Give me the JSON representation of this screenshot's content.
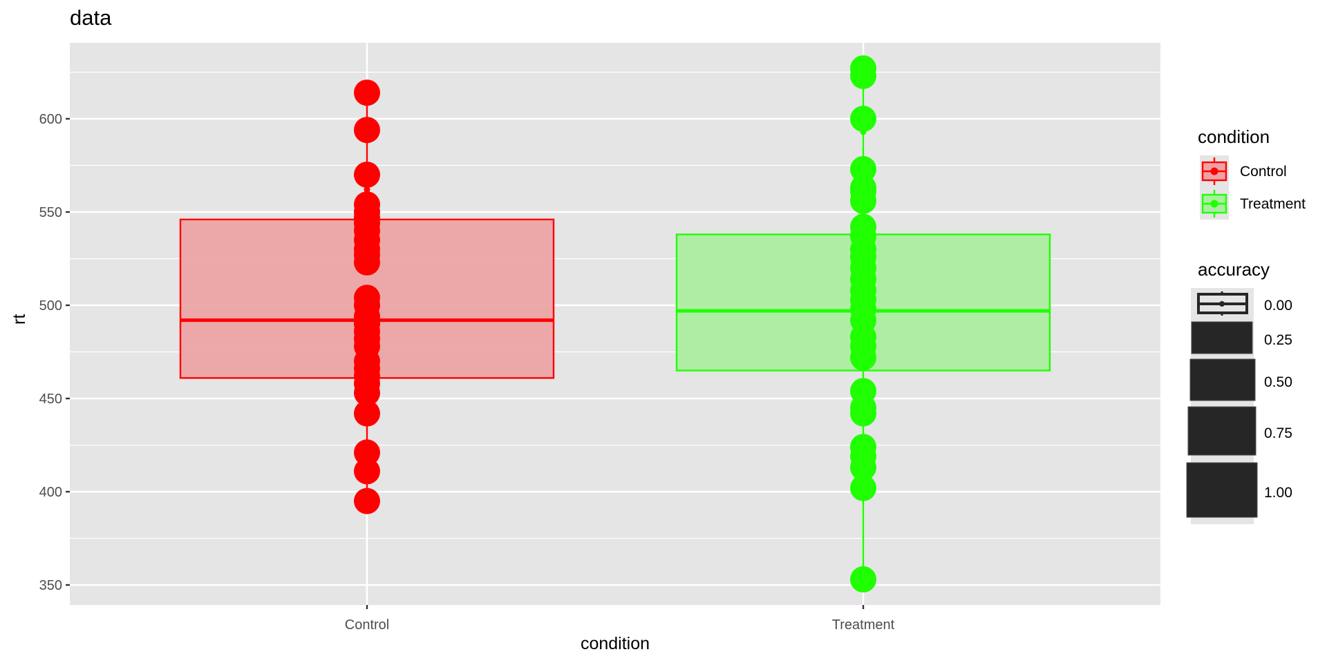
{
  "chart_data": {
    "type": "box",
    "title": "data",
    "xlabel": "condition",
    "ylabel": "rt",
    "ylim": [
      339,
      641
    ],
    "yticks": [
      350,
      400,
      450,
      500,
      550,
      600
    ],
    "grid": true,
    "legend_position": "right",
    "categories": [
      "Control",
      "Treatment"
    ],
    "colors": {
      "Control": "#FF0000",
      "Treatment": "#1FFF00"
    },
    "fill_colors": {
      "Control": "#EDA3A4",
      "Treatment": "#AAEEA0"
    },
    "boxes": [
      {
        "category": "Control",
        "q1": 461,
        "median": 492,
        "q3": 546,
        "whisker_low": 395,
        "whisker_high": 614,
        "points": [
          614,
          594,
          570,
          554,
          550,
          547,
          544,
          540,
          535,
          530,
          527,
          523,
          504,
          500,
          494,
          490,
          486,
          482,
          478,
          470,
          466,
          462,
          458,
          453,
          442,
          421,
          411,
          395
        ],
        "small_points": [
          562
        ]
      },
      {
        "category": "Treatment",
        "q1": 465,
        "median": 497,
        "q3": 538,
        "whisker_low": 353,
        "whisker_high": 627,
        "points": [
          627,
          623,
          600,
          573,
          563,
          561,
          556,
          542,
          537,
          530,
          526,
          520,
          514,
          508,
          503,
          498,
          492,
          483,
          478,
          472,
          454,
          445,
          442,
          424,
          419,
          413,
          402,
          353
        ],
        "small_points": [
          593
        ]
      }
    ],
    "legends": [
      {
        "title": "condition",
        "entries": [
          "Control",
          "Treatment"
        ]
      },
      {
        "title": "accuracy",
        "entries": [
          "0.00",
          "0.25",
          "0.50",
          "0.75",
          "1.00"
        ]
      }
    ]
  }
}
